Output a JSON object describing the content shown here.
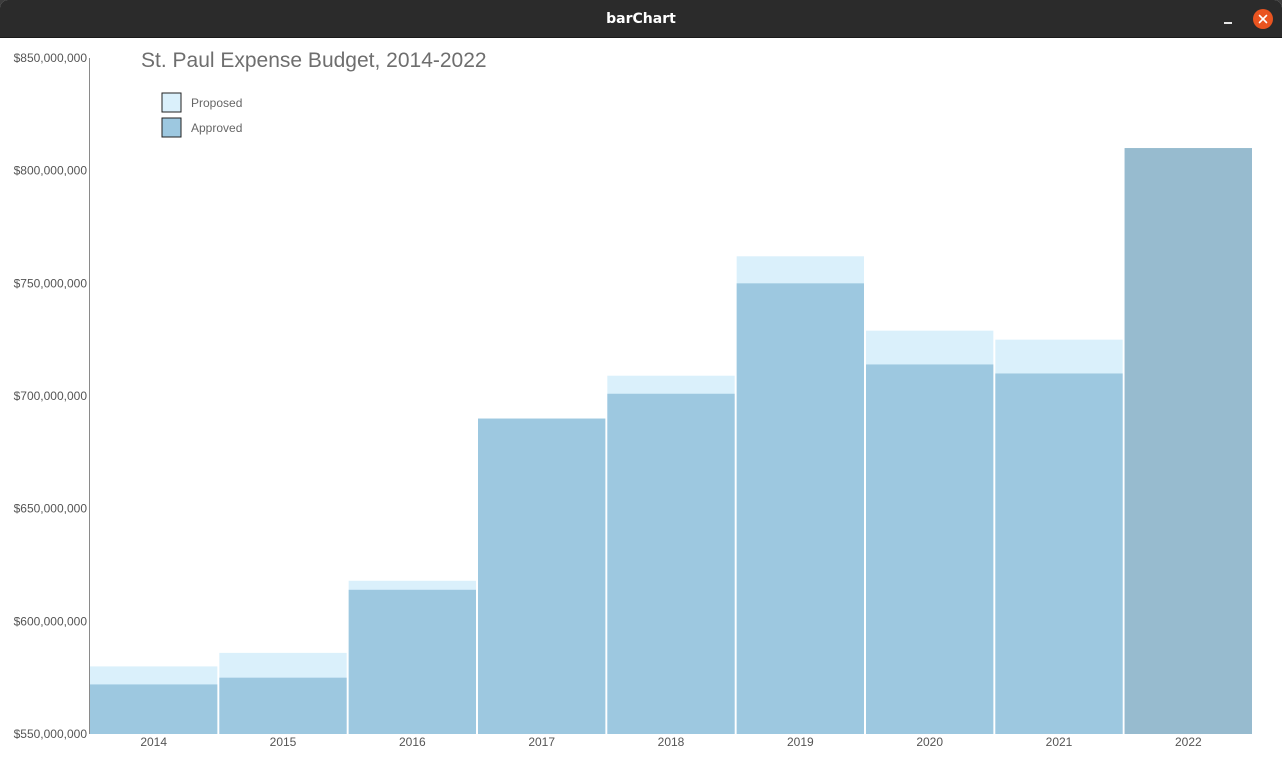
{
  "window": {
    "title": "barChart"
  },
  "colors": {
    "proposed": "#daf0fb",
    "approved": "#9dc8e0",
    "highlight": "#97bbcf",
    "axis": "#8a8a8a",
    "close": "#e95420"
  },
  "chart_data": {
    "type": "bar",
    "title": "St. Paul Expense Budget, 2014-2022",
    "xlabel": "",
    "ylabel": "",
    "ylim": [
      550000000,
      850000000
    ],
    "yticks": [
      {
        "value": 550000000,
        "label": "$550,000,000"
      },
      {
        "value": 600000000,
        "label": "$600,000,000"
      },
      {
        "value": 650000000,
        "label": "$650,000,000"
      },
      {
        "value": 700000000,
        "label": "$700,000,000"
      },
      {
        "value": 750000000,
        "label": "$750,000,000"
      },
      {
        "value": 800000000,
        "label": "$800,000,000"
      },
      {
        "value": 850000000,
        "label": "$850,000,000"
      }
    ],
    "categories": [
      "2014",
      "2015",
      "2016",
      "2017",
      "2018",
      "2019",
      "2020",
      "2021",
      "2022"
    ],
    "series": [
      {
        "name": "Proposed",
        "values": [
          580000000,
          586000000,
          618000000,
          690000000,
          709000000,
          762000000,
          729000000,
          725000000,
          810000000
        ]
      },
      {
        "name": "Approved",
        "values": [
          572000000,
          575000000,
          614000000,
          690000000,
          701000000,
          750000000,
          714000000,
          710000000,
          810000000
        ]
      }
    ],
    "highlighted_category": "2022",
    "legend": [
      "Proposed",
      "Approved"
    ],
    "legend_position": "top-left",
    "grid": false
  }
}
